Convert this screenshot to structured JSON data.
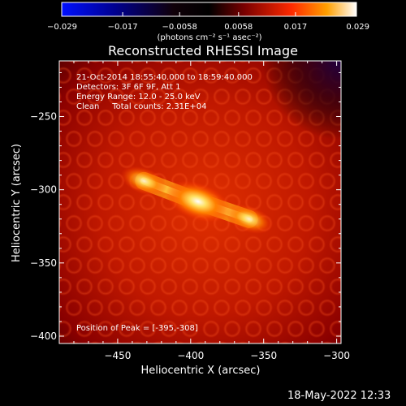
{
  "chart_data": {
    "type": "heatmap",
    "title": "Reconstructed RHESSI Image",
    "xlabel": "Heliocentric X (arcsec)",
    "ylabel": "Heliocentric Y (arcsec)",
    "xlim": [
      -490,
      -297
    ],
    "ylim": [
      -405,
      -212
    ],
    "xticks": [
      -450,
      -400,
      -350,
      -300
    ],
    "yticks": [
      -400,
      -350,
      -300,
      -250
    ],
    "xtick_labels": [
      "−450",
      "−400",
      "−350",
      "−300"
    ],
    "ytick_labels": [
      "−400",
      "−350",
      "−300",
      "−250"
    ],
    "colorbar": {
      "range": [
        -0.029,
        0.029
      ],
      "tick_labels": [
        "−0.029",
        "−0.017",
        "−0.0058",
        "0.0058",
        "0.017",
        "0.029"
      ],
      "tick_values": [
        -0.029,
        -0.017,
        -0.0058,
        0.0058,
        0.017,
        0.029
      ],
      "unit_label": "(photons cm⁻² s⁻¹ asec⁻²)",
      "stops": [
        "#0000ff",
        "#00008b",
        "#000000",
        "#8b0000",
        "#ff0000",
        "#ffa500",
        "#ffffff"
      ]
    },
    "annotations": [
      "21-Oct-2014 18:55:40.000 to 18:59:40.000",
      "Detectors: 3F 6F 9F, Att 1",
      "Energy Range: 12.0 - 25.0 keV",
      "Clean     Total counts: 2.31E+04"
    ],
    "peak_label": "Position of Peak = [-395,-308]",
    "sources": [
      {
        "x": -395,
        "y": -308,
        "intensity": 0.029
      },
      {
        "x": -432,
        "y": -294,
        "intensity": 0.017
      },
      {
        "x": -360,
        "y": -320,
        "intensity": 0.017
      }
    ]
  },
  "footer": {
    "timestamp": "18-May-2022 12:33"
  }
}
